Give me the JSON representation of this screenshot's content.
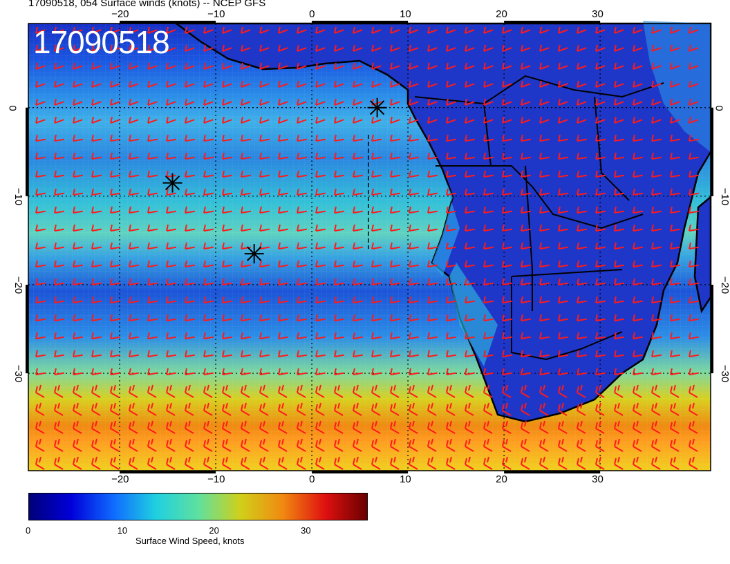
{
  "header": {
    "title": "17090518, 054 Surface winds (knots) -- NCEP GFS",
    "stamp": "17090518"
  },
  "map": {
    "lon_range": [
      -29.5,
      41.5
    ],
    "lat_range": [
      -41,
      9.5
    ],
    "lon_ticks": [
      "−20",
      "−10",
      "0",
      "10",
      "20",
      "30"
    ],
    "lat_ticks": [
      "0",
      "−10",
      "−20",
      "−30"
    ],
    "markers": [
      {
        "name": "storm-marker",
        "lon": 6.8,
        "lat": 0.0
      },
      {
        "name": "storm-marker",
        "lon": -14.5,
        "lat": -8.5
      },
      {
        "name": "storm-marker",
        "lon": -6.0,
        "lat": -16.5
      }
    ],
    "barb_color": "#ff1a1a",
    "land_color": "#1a2fc8",
    "coast_color": "#000000"
  },
  "colorbar": {
    "title": "Surface Wind Speed, knots",
    "labels": [
      "0",
      "10",
      "20",
      "30"
    ],
    "values": [
      0,
      10,
      20,
      30
    ],
    "range": [
      0,
      37
    ],
    "colors": [
      "#00007a",
      "#0000d9",
      "#0f6bff",
      "#1fd0e0",
      "#5ee0a0",
      "#d0d01a",
      "#f08a10",
      "#e01010",
      "#6a0000"
    ]
  }
}
